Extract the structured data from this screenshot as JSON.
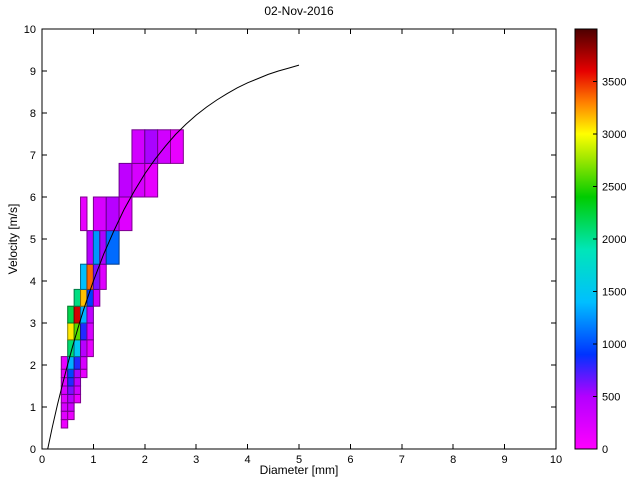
{
  "chart_data": {
    "type": "heatmap",
    "title": "02-Nov-2016",
    "xlabel": "Diameter [mm]",
    "ylabel": "Velocity [m/s]",
    "xlim": [
      0,
      10
    ],
    "ylim": [
      0,
      10
    ],
    "xticks": [
      0,
      1,
      2,
      3,
      4,
      5,
      6,
      7,
      8,
      9,
      10
    ],
    "yticks": [
      0,
      1,
      2,
      3,
      4,
      5,
      6,
      7,
      8,
      9,
      10
    ],
    "grid": false,
    "colorbar": {
      "min": 0,
      "max": 4000,
      "ticks": [
        0,
        500,
        1000,
        1500,
        2000,
        2500,
        3000,
        3500
      ],
      "stops": [
        [
          0,
          "#ff00ff"
        ],
        [
          500,
          "#b300ff"
        ],
        [
          900,
          "#0033ff"
        ],
        [
          1400,
          "#00bfff"
        ],
        [
          1900,
          "#00e6b8"
        ],
        [
          2400,
          "#00cc00"
        ],
        [
          2750,
          "#99e600"
        ],
        [
          3000,
          "#ffff00"
        ],
        [
          3300,
          "#ff8000"
        ],
        [
          3600,
          "#e60000"
        ],
        [
          4000,
          "#4d0000"
        ]
      ]
    },
    "cell_fields": [
      "d_min",
      "d_max",
      "v_min",
      "v_max",
      "count"
    ],
    "cells": [
      [
        0.375,
        0.5,
        0.5,
        0.7,
        120
      ],
      [
        0.375,
        0.5,
        0.7,
        0.9,
        200
      ],
      [
        0.5,
        0.625,
        0.7,
        0.9,
        130
      ],
      [
        0.375,
        0.5,
        0.9,
        1.1,
        260
      ],
      [
        0.5,
        0.625,
        0.9,
        1.1,
        320
      ],
      [
        0.375,
        0.5,
        1.1,
        1.3,
        210
      ],
      [
        0.5,
        0.625,
        1.1,
        1.3,
        460
      ],
      [
        0.625,
        0.75,
        1.1,
        1.3,
        130
      ],
      [
        0.375,
        0.5,
        1.3,
        1.5,
        260
      ],
      [
        0.5,
        0.625,
        1.3,
        1.5,
        620
      ],
      [
        0.625,
        0.75,
        1.3,
        1.5,
        300
      ],
      [
        0.375,
        0.5,
        1.5,
        1.7,
        210
      ],
      [
        0.5,
        0.625,
        1.5,
        1.7,
        820
      ],
      [
        0.625,
        0.75,
        1.5,
        1.7,
        420
      ],
      [
        0.375,
        0.5,
        1.7,
        1.9,
        160
      ],
      [
        0.5,
        0.625,
        1.7,
        1.9,
        960
      ],
      [
        0.625,
        0.75,
        1.7,
        1.9,
        520
      ],
      [
        0.75,
        0.875,
        1.7,
        1.9,
        160
      ],
      [
        0.375,
        0.5,
        1.9,
        2.2,
        160
      ],
      [
        0.5,
        0.625,
        1.9,
        2.2,
        1350
      ],
      [
        0.625,
        0.75,
        1.9,
        2.2,
        820
      ],
      [
        0.75,
        0.875,
        1.9,
        2.2,
        260
      ],
      [
        0.5,
        0.625,
        2.2,
        2.6,
        2100
      ],
      [
        0.625,
        0.75,
        2.2,
        2.6,
        1500
      ],
      [
        0.75,
        0.875,
        2.2,
        2.6,
        470
      ],
      [
        0.875,
        1.0,
        2.2,
        2.6,
        160
      ],
      [
        0.5,
        0.625,
        2.6,
        3.0,
        3050
      ],
      [
        0.625,
        0.75,
        2.6,
        3.0,
        2600
      ],
      [
        0.75,
        0.875,
        2.6,
        3.0,
        820
      ],
      [
        0.875,
        1.0,
        2.6,
        3.0,
        260
      ],
      [
        0.5,
        0.625,
        3.0,
        3.4,
        2200
      ],
      [
        0.625,
        0.75,
        3.0,
        3.4,
        3650
      ],
      [
        0.75,
        0.875,
        3.0,
        3.4,
        1350
      ],
      [
        0.875,
        1.0,
        3.0,
        3.4,
        420
      ],
      [
        0.625,
        0.75,
        3.4,
        3.8,
        2050
      ],
      [
        0.75,
        0.875,
        3.4,
        3.8,
        3150
      ],
      [
        0.875,
        1.0,
        3.4,
        3.8,
        950
      ],
      [
        1.0,
        1.125,
        3.4,
        3.8,
        300
      ],
      [
        0.75,
        0.875,
        3.8,
        4.4,
        1400
      ],
      [
        0.875,
        1.0,
        3.8,
        4.4,
        3350
      ],
      [
        1.0,
        1.125,
        3.8,
        4.4,
        620
      ],
      [
        1.125,
        1.25,
        3.8,
        4.4,
        210
      ],
      [
        0.875,
        1.0,
        4.4,
        5.2,
        470
      ],
      [
        1.0,
        1.125,
        4.4,
        5.2,
        1250
      ],
      [
        1.125,
        1.25,
        4.4,
        5.2,
        520
      ],
      [
        1.25,
        1.5,
        4.4,
        5.2,
        1100
      ],
      [
        0.75,
        0.875,
        5.2,
        6.0,
        150
      ],
      [
        1.0,
        1.25,
        5.2,
        6.0,
        260
      ],
      [
        1.25,
        1.5,
        5.2,
        6.0,
        470
      ],
      [
        1.5,
        1.75,
        5.2,
        6.0,
        210
      ],
      [
        1.5,
        1.75,
        6.0,
        6.8,
        420
      ],
      [
        1.75,
        2.0,
        6.0,
        6.8,
        260
      ],
      [
        2.0,
        2.25,
        6.0,
        6.8,
        160
      ],
      [
        1.75,
        2.0,
        6.8,
        7.6,
        300
      ],
      [
        2.0,
        2.25,
        6.8,
        7.6,
        520
      ],
      [
        2.25,
        2.5,
        6.8,
        7.6,
        300
      ],
      [
        2.5,
        2.75,
        6.8,
        7.6,
        150
      ]
    ],
    "curve": {
      "name": "terminal-velocity-fit",
      "x": [
        0.11,
        0.2,
        0.3,
        0.4,
        0.5,
        0.6,
        0.7,
        0.8,
        0.9,
        1.0,
        1.2,
        1.4,
        1.6,
        1.8,
        2.0,
        2.2,
        2.4,
        2.6,
        2.8,
        3.0,
        3.2,
        3.4,
        3.6,
        3.8,
        4.0,
        4.2,
        4.4,
        4.6,
        4.8,
        5.0
      ],
      "y": [
        0,
        0.52,
        1.05,
        1.55,
        2.02,
        2.46,
        2.88,
        3.28,
        3.65,
        4.0,
        4.64,
        5.2,
        5.71,
        6.15,
        6.55,
        6.9,
        7.21,
        7.49,
        7.73,
        7.95,
        8.14,
        8.31,
        8.46,
        8.6,
        8.72,
        8.82,
        8.92,
        9.0,
        9.07,
        9.14
      ]
    }
  }
}
